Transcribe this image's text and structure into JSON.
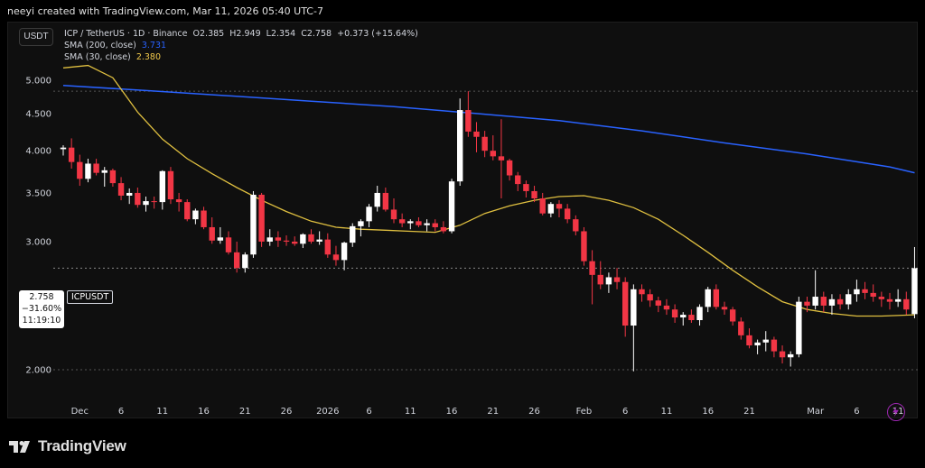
{
  "header": {
    "credit": "neeyi created with TradingView.com, Mar 11, 2026 05:40 UTC-7"
  },
  "toolbar": {
    "currency_button": "USDT"
  },
  "legend": {
    "title": "ICP / TetherUS · 1D · Binance",
    "open_label": "O",
    "open": "2.385",
    "high_label": "H",
    "high": "2.949",
    "low_label": "L",
    "low": "2.354",
    "close_label": "C",
    "close": "2.758",
    "change": "+0.373 (+15.64%)",
    "sma200_label": "SMA (200, close)",
    "sma200_value": "3.731",
    "sma30_label": "SMA (30, close)",
    "sma30_value": "2.380"
  },
  "price_marker": {
    "price": "2.758",
    "change": "−31.60%",
    "countdown": "11:19:10",
    "symbol": "ICPUSDT"
  },
  "footer": {
    "brand": "TradingView"
  },
  "colors": {
    "up": "#ffffff",
    "down": "#f23645",
    "sma200": "#2962ff",
    "sma30": "#e0c040",
    "grid": "#2a2a2a",
    "background": "#0f0f0f"
  },
  "icons": {
    "logo": "tradingview-logo-icon",
    "replay": "lightning-bolt-icon"
  },
  "chart_data": {
    "type": "candlestick",
    "symbol": "ICPUSDT",
    "interval": "1D",
    "y_ticks": [
      "5.000",
      "4.500",
      "4.000",
      "3.500",
      "3.000",
      "2.000"
    ],
    "y_tick_values": [
      5.0,
      4.5,
      4.0,
      3.5,
      3.0,
      2.0
    ],
    "x_ticks": [
      {
        "label": "Dec",
        "index": 2
      },
      {
        "label": "6",
        "index": 7
      },
      {
        "label": "11",
        "index": 12
      },
      {
        "label": "16",
        "index": 17
      },
      {
        "label": "21",
        "index": 22
      },
      {
        "label": "26",
        "index": 27
      },
      {
        "label": "2026",
        "index": 32
      },
      {
        "label": "6",
        "index": 37
      },
      {
        "label": "11",
        "index": 42
      },
      {
        "label": "16",
        "index": 47
      },
      {
        "label": "21",
        "index": 52
      },
      {
        "label": "26",
        "index": 57
      },
      {
        "label": "Feb",
        "index": 63
      },
      {
        "label": "6",
        "index": 68
      },
      {
        "label": "11",
        "index": 73
      },
      {
        "label": "16",
        "index": 78
      },
      {
        "label": "21",
        "index": 83
      },
      {
        "label": "Mar",
        "index": 91
      },
      {
        "label": "6",
        "index": 96
      },
      {
        "label": "11",
        "index": 101
      }
    ],
    "last_price": 2.758,
    "high_line": 4.83,
    "low_line": 2.0,
    "candles": [
      [
        4.02,
        4.07,
        3.94,
        4.04
      ],
      [
        4.04,
        4.16,
        3.78,
        3.86
      ],
      [
        3.86,
        3.95,
        3.58,
        3.66
      ],
      [
        3.66,
        3.9,
        3.62,
        3.84
      ],
      [
        3.84,
        3.9,
        3.7,
        3.73
      ],
      [
        3.73,
        3.8,
        3.57,
        3.76
      ],
      [
        3.76,
        3.78,
        3.57,
        3.61
      ],
      [
        3.61,
        3.68,
        3.42,
        3.47
      ],
      [
        3.47,
        3.55,
        3.38,
        3.5
      ],
      [
        3.5,
        3.56,
        3.34,
        3.37
      ],
      [
        3.37,
        3.46,
        3.3,
        3.41
      ],
      [
        3.41,
        3.46,
        3.33,
        3.4
      ],
      [
        3.4,
        3.76,
        3.32,
        3.75
      ],
      [
        3.75,
        3.8,
        3.38,
        3.43
      ],
      [
        3.43,
        3.5,
        3.3,
        3.4
      ],
      [
        3.4,
        3.43,
        3.2,
        3.22
      ],
      [
        3.22,
        3.33,
        3.17,
        3.31
      ],
      [
        3.31,
        3.35,
        3.12,
        3.14
      ],
      [
        3.14,
        3.24,
        2.98,
        3.01
      ],
      [
        3.01,
        3.14,
        2.98,
        3.04
      ],
      [
        3.04,
        3.1,
        2.88,
        2.9
      ],
      [
        2.9,
        3.0,
        2.72,
        2.76
      ],
      [
        2.76,
        2.9,
        2.72,
        2.88
      ],
      [
        2.88,
        3.52,
        2.85,
        3.48
      ],
      [
        3.48,
        3.5,
        2.95,
        3.0
      ],
      [
        3.0,
        3.12,
        2.96,
        3.04
      ],
      [
        3.04,
        3.1,
        2.95,
        3.01
      ],
      [
        3.01,
        3.06,
        2.96,
        3.0
      ],
      [
        3.0,
        3.05,
        2.96,
        2.98
      ],
      [
        2.98,
        3.08,
        2.94,
        3.07
      ],
      [
        3.07,
        3.12,
        2.98,
        3.0
      ],
      [
        3.0,
        3.1,
        2.97,
        3.02
      ],
      [
        3.02,
        3.08,
        2.85,
        2.88
      ],
      [
        2.88,
        2.96,
        2.78,
        2.83
      ],
      [
        2.83,
        3.0,
        2.74,
        2.99
      ],
      [
        2.99,
        3.18,
        2.95,
        3.15
      ],
      [
        3.15,
        3.22,
        3.05,
        3.2
      ],
      [
        3.2,
        3.38,
        3.14,
        3.35
      ],
      [
        3.35,
        3.58,
        3.3,
        3.5
      ],
      [
        3.5,
        3.56,
        3.3,
        3.32
      ],
      [
        3.32,
        3.44,
        3.18,
        3.22
      ],
      [
        3.22,
        3.28,
        3.14,
        3.18
      ],
      [
        3.18,
        3.22,
        3.12,
        3.2
      ],
      [
        3.2,
        3.24,
        3.14,
        3.16
      ],
      [
        3.16,
        3.22,
        3.1,
        3.18
      ],
      [
        3.18,
        3.22,
        3.1,
        3.14
      ],
      [
        3.14,
        3.2,
        3.08,
        3.1
      ],
      [
        3.1,
        3.66,
        3.08,
        3.63
      ],
      [
        3.63,
        4.72,
        3.58,
        4.55
      ],
      [
        4.55,
        4.83,
        4.18,
        4.25
      ],
      [
        4.25,
        4.38,
        3.98,
        4.18
      ],
      [
        4.18,
        4.26,
        3.92,
        4.0
      ],
      [
        4.0,
        4.2,
        3.88,
        3.93
      ],
      [
        3.93,
        4.42,
        3.44,
        3.88
      ],
      [
        3.88,
        3.9,
        3.64,
        3.7
      ],
      [
        3.7,
        3.74,
        3.52,
        3.6
      ],
      [
        3.6,
        3.64,
        3.45,
        3.52
      ],
      [
        3.52,
        3.58,
        3.4,
        3.44
      ],
      [
        3.44,
        3.5,
        3.26,
        3.28
      ],
      [
        3.28,
        3.4,
        3.24,
        3.38
      ],
      [
        3.38,
        3.42,
        3.24,
        3.33
      ],
      [
        3.33,
        3.38,
        3.18,
        3.22
      ],
      [
        3.22,
        3.26,
        3.06,
        3.1
      ],
      [
        3.1,
        3.14,
        2.78,
        2.82
      ],
      [
        2.82,
        2.92,
        2.46,
        2.7
      ],
      [
        2.7,
        2.82,
        2.58,
        2.62
      ],
      [
        2.62,
        2.72,
        2.55,
        2.68
      ],
      [
        2.68,
        2.76,
        2.58,
        2.64
      ],
      [
        2.64,
        2.68,
        2.22,
        2.3
      ],
      [
        2.3,
        2.62,
        1.99,
        2.58
      ],
      [
        2.58,
        2.62,
        2.48,
        2.54
      ],
      [
        2.54,
        2.58,
        2.44,
        2.49
      ],
      [
        2.49,
        2.52,
        2.4,
        2.45
      ],
      [
        2.45,
        2.5,
        2.38,
        2.42
      ],
      [
        2.42,
        2.46,
        2.32,
        2.36
      ],
      [
        2.36,
        2.4,
        2.3,
        2.38
      ],
      [
        2.38,
        2.42,
        2.32,
        2.34
      ],
      [
        2.34,
        2.46,
        2.3,
        2.44
      ],
      [
        2.44,
        2.6,
        2.4,
        2.58
      ],
      [
        2.58,
        2.62,
        2.42,
        2.44
      ],
      [
        2.44,
        2.48,
        2.38,
        2.42
      ],
      [
        2.42,
        2.44,
        2.3,
        2.33
      ],
      [
        2.33,
        2.36,
        2.2,
        2.23
      ],
      [
        2.23,
        2.28,
        2.14,
        2.16
      ],
      [
        2.16,
        2.2,
        2.1,
        2.18
      ],
      [
        2.18,
        2.26,
        2.12,
        2.2
      ],
      [
        2.2,
        2.22,
        2.08,
        2.12
      ],
      [
        2.12,
        2.16,
        2.04,
        2.08
      ],
      [
        2.08,
        2.12,
        2.02,
        2.1
      ],
      [
        2.1,
        2.52,
        2.08,
        2.48
      ],
      [
        2.48,
        2.52,
        2.4,
        2.45
      ],
      [
        2.45,
        2.74,
        2.42,
        2.52
      ],
      [
        2.52,
        2.56,
        2.4,
        2.45
      ],
      [
        2.45,
        2.54,
        2.38,
        2.5
      ],
      [
        2.5,
        2.54,
        2.42,
        2.46
      ],
      [
        2.46,
        2.58,
        2.42,
        2.54
      ],
      [
        2.54,
        2.66,
        2.48,
        2.58
      ],
      [
        2.58,
        2.64,
        2.5,
        2.55
      ],
      [
        2.55,
        2.62,
        2.48,
        2.52
      ],
      [
        2.52,
        2.56,
        2.44,
        2.5
      ],
      [
        2.5,
        2.55,
        2.42,
        2.48
      ],
      [
        2.48,
        2.58,
        2.44,
        2.5
      ],
      [
        2.5,
        2.56,
        2.38,
        2.42
      ],
      [
        2.385,
        2.949,
        2.354,
        2.758
      ]
    ],
    "sma200": [
      [
        0,
        4.92
      ],
      [
        10,
        4.84
      ],
      [
        20,
        4.76
      ],
      [
        30,
        4.68
      ],
      [
        40,
        4.6
      ],
      [
        50,
        4.5
      ],
      [
        60,
        4.4
      ],
      [
        70,
        4.26
      ],
      [
        80,
        4.1
      ],
      [
        90,
        3.96
      ],
      [
        100,
        3.8
      ],
      [
        103,
        3.731
      ]
    ],
    "sma30": [
      [
        0,
        5.2
      ],
      [
        3,
        5.24
      ],
      [
        6,
        5.04
      ],
      [
        9,
        4.52
      ],
      [
        12,
        4.15
      ],
      [
        15,
        3.9
      ],
      [
        18,
        3.72
      ],
      [
        21,
        3.56
      ],
      [
        24,
        3.42
      ],
      [
        27,
        3.3
      ],
      [
        30,
        3.2
      ],
      [
        33,
        3.14
      ],
      [
        36,
        3.12
      ],
      [
        39,
        3.11
      ],
      [
        42,
        3.1
      ],
      [
        45,
        3.09
      ],
      [
        48,
        3.16
      ],
      [
        51,
        3.28
      ],
      [
        54,
        3.36
      ],
      [
        57,
        3.42
      ],
      [
        60,
        3.46
      ],
      [
        63,
        3.47
      ],
      [
        66,
        3.42
      ],
      [
        69,
        3.34
      ],
      [
        72,
        3.22
      ],
      [
        75,
        3.06
      ],
      [
        78,
        2.9
      ],
      [
        81,
        2.74
      ],
      [
        84,
        2.6
      ],
      [
        87,
        2.48
      ],
      [
        90,
        2.42
      ],
      [
        93,
        2.39
      ],
      [
        96,
        2.37
      ],
      [
        99,
        2.37
      ],
      [
        103,
        2.38
      ]
    ]
  }
}
